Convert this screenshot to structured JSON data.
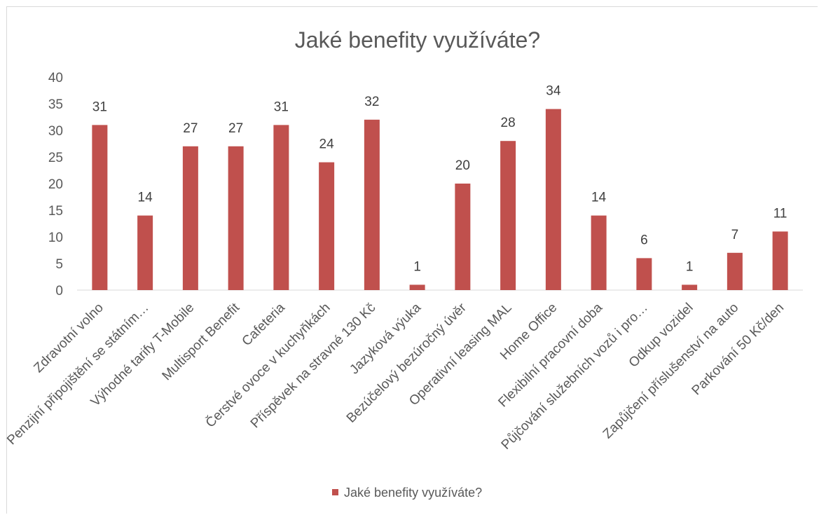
{
  "chart_data": {
    "type": "bar",
    "title": "Jaké benefity využíváte?",
    "categories": [
      "Zdravotní volno",
      "Penzijní připojištění se státním…",
      "Výhodné tarify T-Mobile",
      "Multisport Benefit",
      "Cafeteria",
      "Čerstvé ovoce v kuchyňkách",
      "Příspěvek na stravné 130 Kč",
      "Jazyková výuka",
      "Bezúčelový bezúročný úvěr",
      "Operativní leasing MAL",
      "Home Office",
      "Flexibilní pracovní doba",
      "Půjčování služebních vozů i pro…",
      "Odkup vozidel",
      "Zapůjčení příslušenství na auto",
      "Parkování 50 Kč/den"
    ],
    "series": [
      {
        "name": "Jaké benefity využíváte?",
        "values": [
          31,
          14,
          27,
          27,
          31,
          24,
          32,
          1,
          20,
          28,
          34,
          14,
          6,
          1,
          7,
          11
        ],
        "color": "#c0504d"
      }
    ],
    "yticks": [
      "0",
      "5",
      "10",
      "15",
      "20",
      "25",
      "30",
      "35",
      "40"
    ],
    "ylim": [
      0,
      40
    ],
    "grid": false,
    "data_labels": true,
    "legend_position": "bottom",
    "xlabel": "",
    "ylabel": ""
  }
}
